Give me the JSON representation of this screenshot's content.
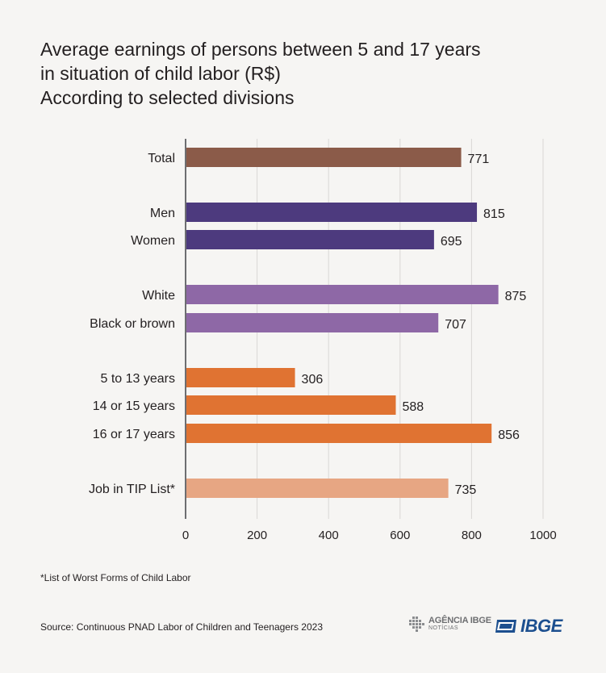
{
  "title": {
    "line1": "Average earnings of persons between 5 and 17 years",
    "line2": "in situation of child labor (R$)",
    "line3": "According to selected divisions"
  },
  "chart_data": {
    "type": "bar",
    "orientation": "horizontal",
    "title": "Average earnings of persons between 5 and 17 years in situation of child labor (R$) According to selected divisions",
    "xlim": [
      0,
      1000
    ],
    "xticks": [
      0,
      200,
      400,
      600,
      800,
      1000
    ],
    "grid": true,
    "categories": [
      "Total",
      "Men",
      "Women",
      "White",
      "Black or brown",
      "5 to 13 years",
      "14 or 15 years",
      "16 or 17 years",
      "Job in TIP List*"
    ],
    "values": [
      771,
      815,
      695,
      875,
      707,
      306,
      588,
      856,
      735
    ],
    "colors": [
      "#8b5b49",
      "#4d3a7e",
      "#4d3a7e",
      "#8e68a6",
      "#8e68a6",
      "#e07332",
      "#e07332",
      "#e07332",
      "#e7a683"
    ]
  },
  "footnote": "*List of Worst Forms of Child Labor",
  "source": "Source: Continuous PNAD Labor of Children and Teenagers 2023",
  "logos": {
    "agencia_line1": "AGÊNCIA IBGE",
    "agencia_line2": "NOTÍCIAS",
    "ibge": "IBGE"
  }
}
